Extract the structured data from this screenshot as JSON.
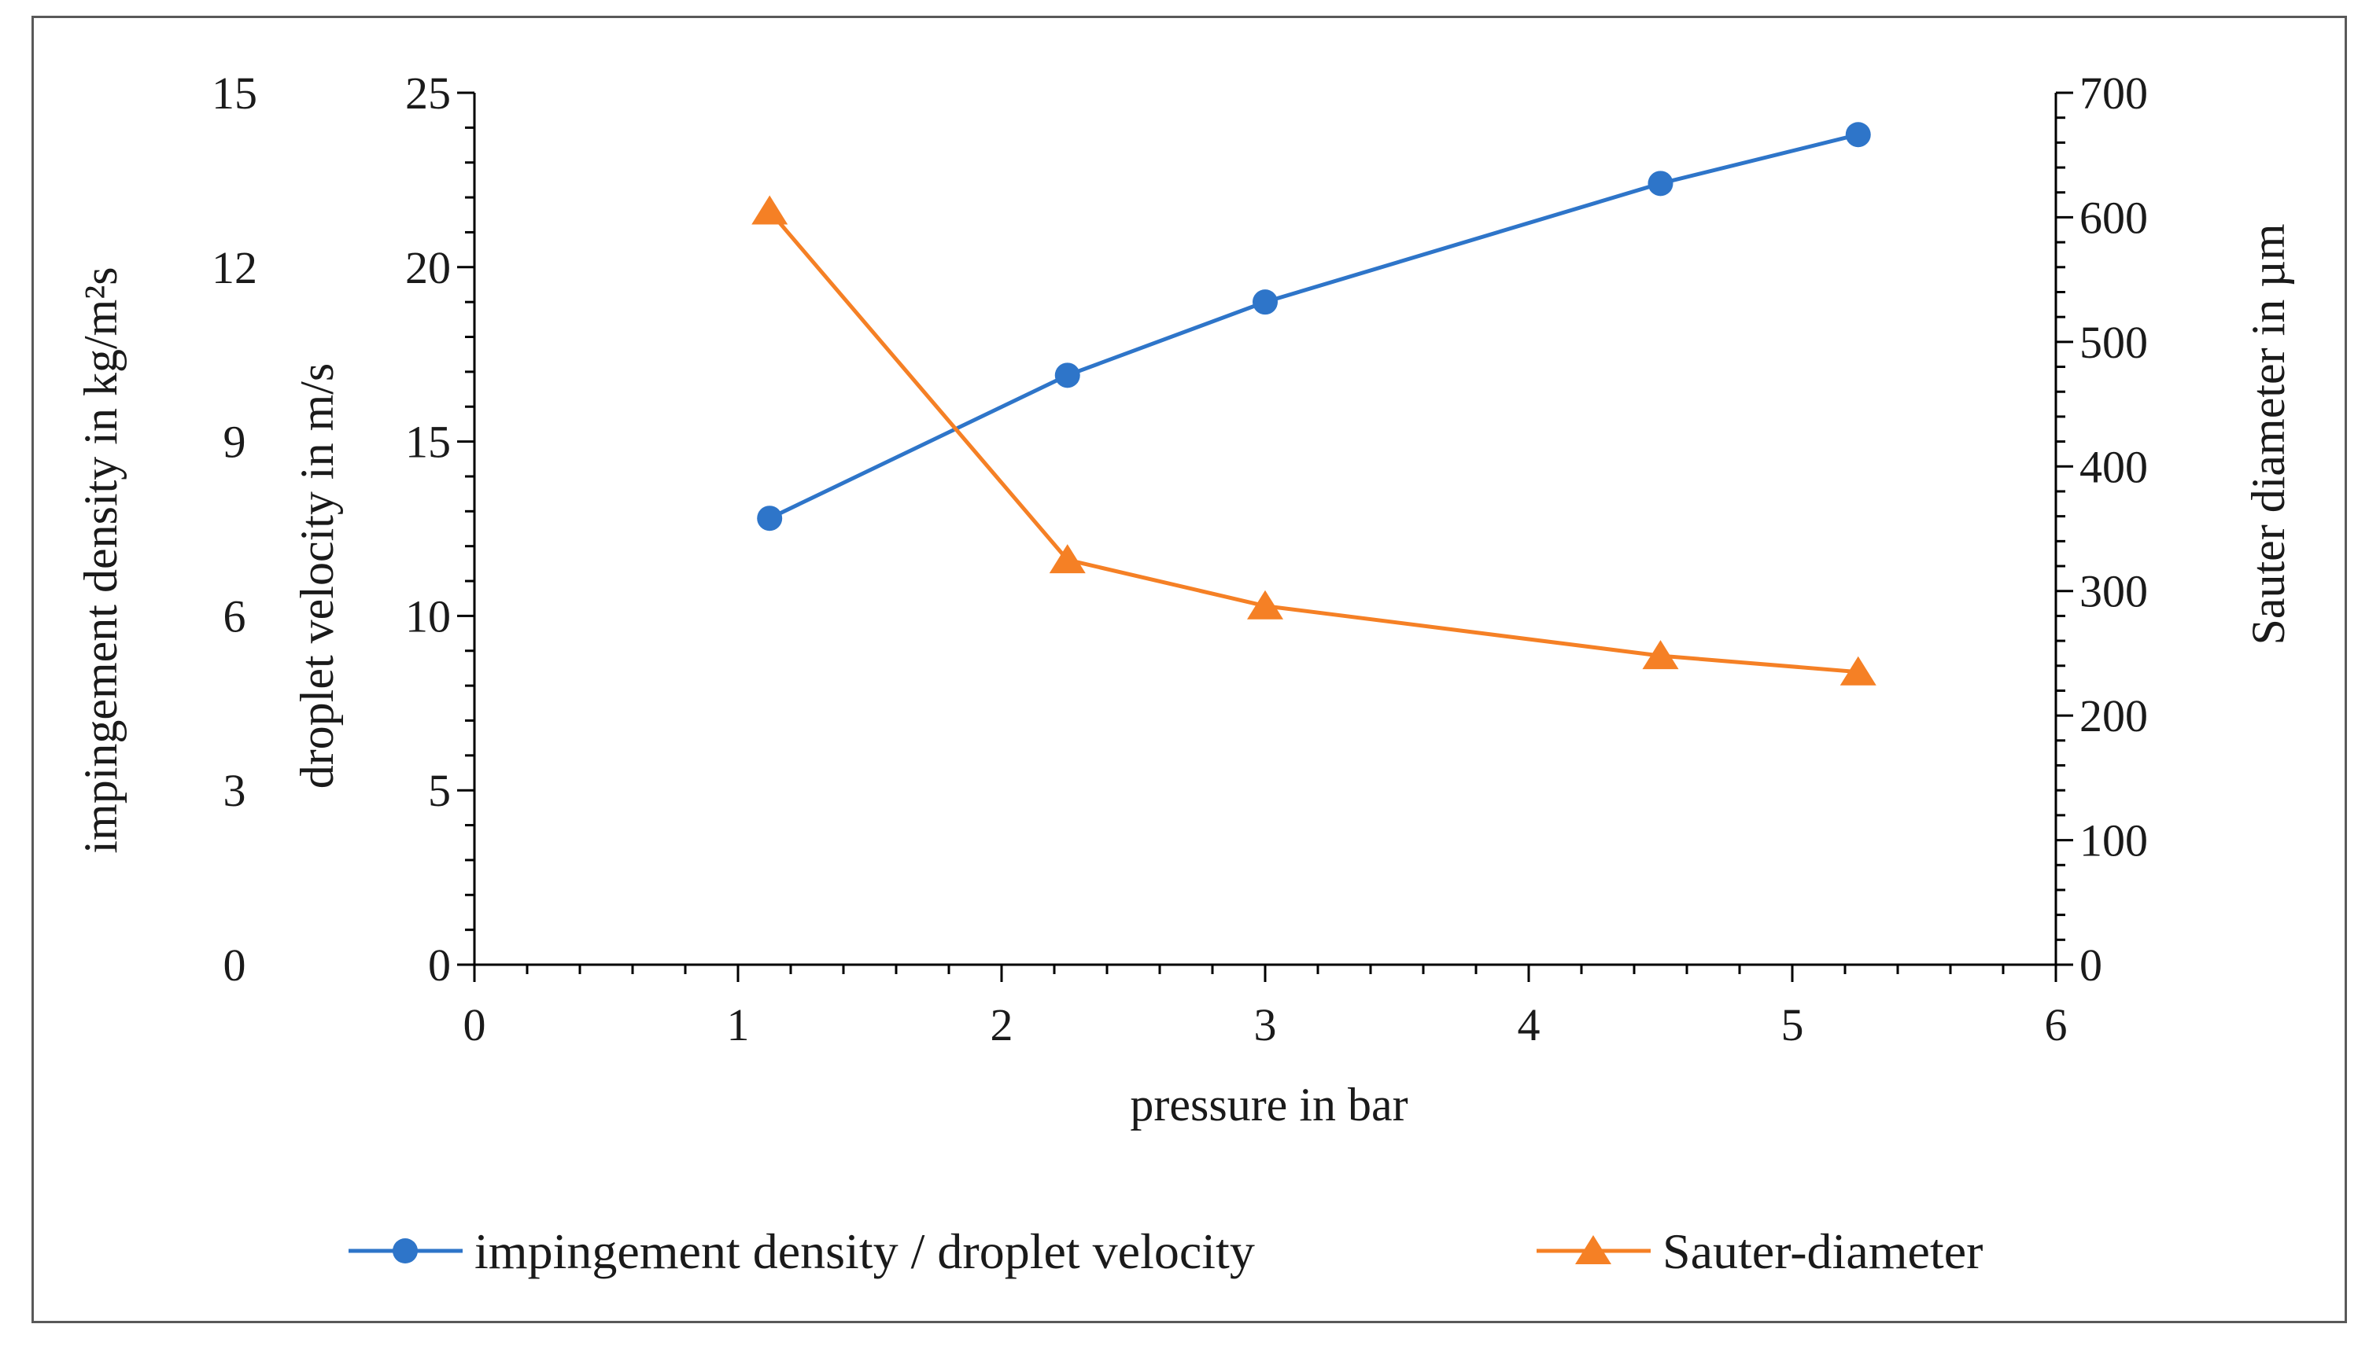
{
  "chart_data": {
    "type": "line",
    "title": "",
    "xlabel": "pressure in bar",
    "xlim": [
      0,
      6
    ],
    "x_ticks": [
      "0",
      "1",
      "2",
      "3",
      "4",
      "5",
      "6"
    ],
    "axes": {
      "left_outer": {
        "label": "impingement density in kg/m²s",
        "lim": [
          0,
          15
        ],
        "ticks": [
          "0",
          "3",
          "6",
          "9",
          "12",
          "15"
        ]
      },
      "left_inner": {
        "label": "droplet velocity in m/s",
        "lim": [
          0,
          25
        ],
        "ticks": [
          "0",
          "5",
          "10",
          "15",
          "20",
          "25"
        ]
      },
      "right": {
        "label": "Sauter diameter in µm",
        "lim": [
          0,
          700
        ],
        "ticks": [
          "0",
          "100",
          "200",
          "300",
          "400",
          "500",
          "600",
          "700"
        ]
      }
    },
    "series": [
      {
        "name": "impingement density / droplet velocity",
        "axis": "left_inner",
        "color": "#2e75c9",
        "marker": "circle",
        "x": [
          1.12,
          2.25,
          3.0,
          4.5,
          5.25
        ],
        "values": [
          12.8,
          16.9,
          19.0,
          22.4,
          23.8
        ]
      },
      {
        "name": "Sauter-diameter",
        "axis": "right",
        "color": "#f58025",
        "marker": "triangle",
        "x": [
          1.12,
          2.25,
          3.0,
          4.5,
          5.25
        ],
        "values": [
          605,
          325,
          288,
          248,
          235
        ]
      }
    ],
    "grid": false,
    "legend": "bottom"
  }
}
